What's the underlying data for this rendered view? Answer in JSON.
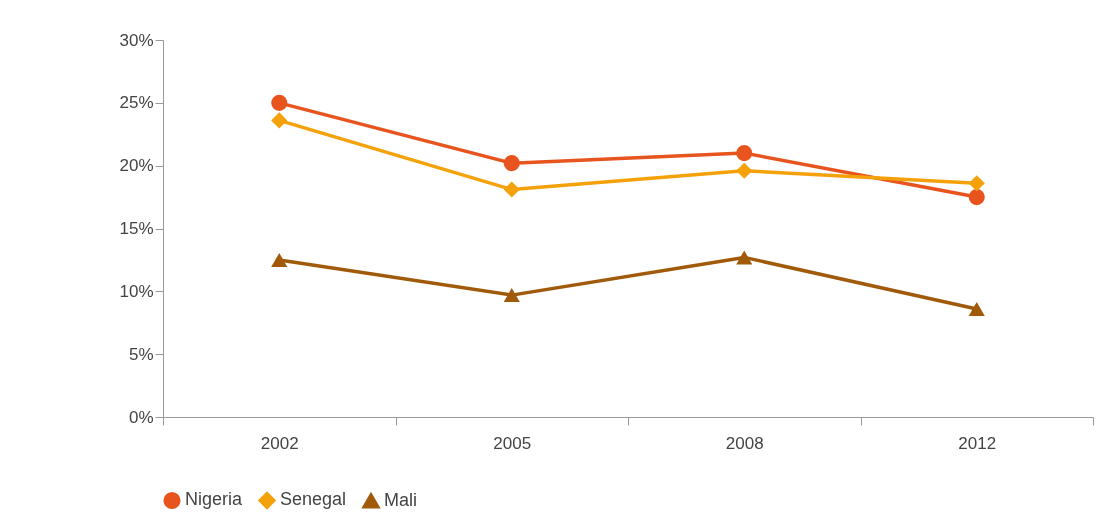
{
  "chart_data": {
    "type": "line",
    "categories": [
      "2002",
      "2005",
      "2008",
      "2012"
    ],
    "series": [
      {
        "name": "Nigeria",
        "color": "#e8541e",
        "marker": "circle",
        "values": [
          25.0,
          20.2,
          21.0,
          17.5
        ]
      },
      {
        "name": "Senegal",
        "color": "#f5a20a",
        "marker": "diamond",
        "values": [
          23.6,
          18.1,
          19.6,
          18.6
        ]
      },
      {
        "name": "Mali",
        "color": "#a05a0a",
        "marker": "triangle",
        "values": [
          12.5,
          9.7,
          12.7,
          8.6
        ]
      }
    ],
    "ylim": [
      0,
      30
    ],
    "yticks": [
      {
        "value": 0,
        "label": "0%"
      },
      {
        "value": 5,
        "label": "5%"
      },
      {
        "value": 10,
        "label": "10%"
      },
      {
        "value": 15,
        "label": "15%"
      },
      {
        "value": 20,
        "label": "20%"
      },
      {
        "value": 25,
        "label": "25%"
      },
      {
        "value": 30,
        "label": "30%"
      }
    ],
    "grid": false,
    "legend": "bottom",
    "line_style": "solid"
  }
}
